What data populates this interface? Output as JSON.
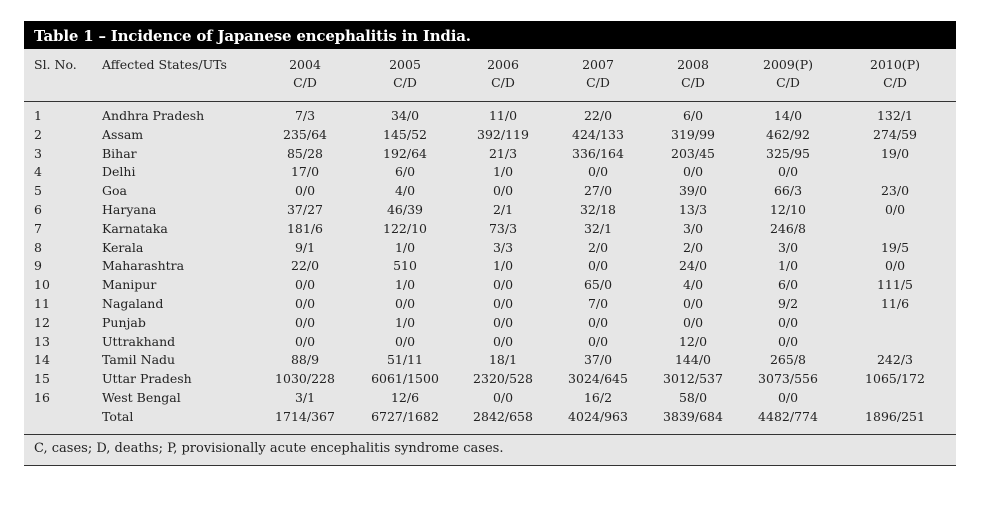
{
  "title": "Table 1 – Incidence of Japanese encephalitis in India.",
  "headers": {
    "sl_no": "Sl. No.",
    "states": "Affected States/UTs",
    "years": [
      "2004",
      "2005",
      "2006",
      "2007",
      "2008",
      "2009(P)",
      "2010(P)"
    ],
    "unit": "C/D"
  },
  "rows": [
    {
      "sl": "1",
      "state": "Andhra Pradesh",
      "v": [
        "7/3",
        "34/0",
        "11/0",
        "22/0",
        "6/0",
        "14/0",
        "132/1"
      ]
    },
    {
      "sl": "2",
      "state": "Assam",
      "v": [
        "235/64",
        "145/52",
        "392/119",
        "424/133",
        "319/99",
        "462/92",
        "274/59"
      ]
    },
    {
      "sl": "3",
      "state": "Bihar",
      "v": [
        "85/28",
        "192/64",
        "21/3",
        "336/164",
        "203/45",
        "325/95",
        "19/0"
      ]
    },
    {
      "sl": "4",
      "state": "Delhi",
      "v": [
        "17/0",
        "6/0",
        "1/0",
        "0/0",
        "0/0",
        "0/0",
        ""
      ]
    },
    {
      "sl": "5",
      "state": "Goa",
      "v": [
        "0/0",
        "4/0",
        "0/0",
        "27/0",
        "39/0",
        "66/3",
        "23/0"
      ]
    },
    {
      "sl": "6",
      "state": "Haryana",
      "v": [
        "37/27",
        "46/39",
        "2/1",
        "32/18",
        "13/3",
        "12/10",
        "0/0"
      ]
    },
    {
      "sl": "7",
      "state": "Karnataka",
      "v": [
        "181/6",
        "122/10",
        "73/3",
        "32/1",
        "3/0",
        "246/8",
        ""
      ]
    },
    {
      "sl": "8",
      "state": "Kerala",
      "v": [
        "9/1",
        "1/0",
        "3/3",
        "2/0",
        "2/0",
        "3/0",
        "19/5"
      ]
    },
    {
      "sl": "9",
      "state": "Maharashtra",
      "v": [
        "22/0",
        "510",
        "1/0",
        "0/0",
        "24/0",
        "1/0",
        "0/0"
      ]
    },
    {
      "sl": "10",
      "state": "Manipur",
      "v": [
        "0/0",
        "1/0",
        "0/0",
        "65/0",
        "4/0",
        "6/0",
        "111/5"
      ]
    },
    {
      "sl": "11",
      "state": "Nagaland",
      "v": [
        "0/0",
        "0/0",
        "0/0",
        "7/0",
        "0/0",
        "9/2",
        "11/6"
      ]
    },
    {
      "sl": "12",
      "state": "Punjab",
      "v": [
        "0/0",
        "1/0",
        "0/0",
        "0/0",
        "0/0",
        "0/0",
        ""
      ]
    },
    {
      "sl": "13",
      "state": "Uttrakhand",
      "v": [
        "0/0",
        "0/0",
        "0/0",
        "0/0",
        "12/0",
        "0/0",
        ""
      ]
    },
    {
      "sl": "14",
      "state": "Tamil Nadu",
      "v": [
        "88/9",
        "51/11",
        "18/1",
        "37/0",
        "144/0",
        "265/8",
        "242/3"
      ]
    },
    {
      "sl": "15",
      "state": "Uttar Pradesh",
      "v": [
        "1030/228",
        "6061/1500",
        "2320/528",
        "3024/645",
        "3012/537",
        "3073/556",
        "1065/172"
      ]
    },
    {
      "sl": "16",
      "state": "West Bengal",
      "v": [
        "3/1",
        "12/6",
        "0/0",
        "16/2",
        "58/0",
        "0/0",
        ""
      ]
    },
    {
      "sl": "",
      "state": "Total",
      "v": [
        "1714/367",
        "6727/1682",
        "2842/658",
        "4024/963",
        "3839/684",
        "4482/774",
        "1896/251"
      ]
    }
  ],
  "footnote": "C, cases; D, deaths; P, provisionally acute encephalitis syndrome cases."
}
